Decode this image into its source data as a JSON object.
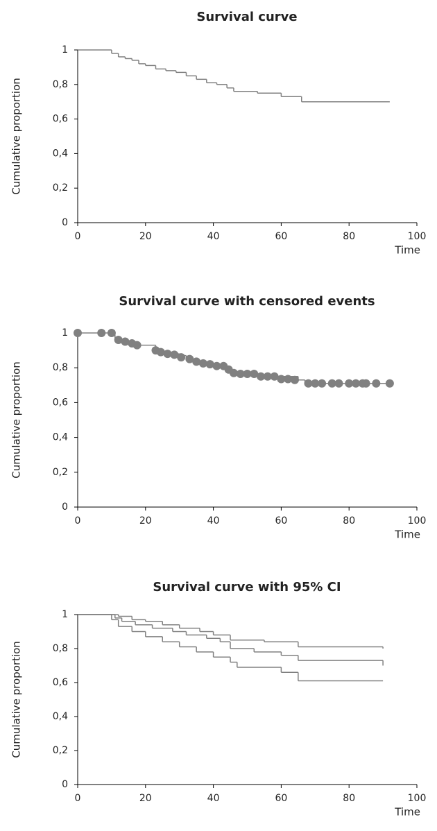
{
  "chart_data": [
    {
      "type": "line",
      "title": "Survival curve",
      "y_label": "Cumulative proportion",
      "x_label": "Time",
      "grid": false,
      "xlim": [
        0,
        100
      ],
      "xticks": [
        0,
        20,
        40,
        60,
        80,
        100
      ],
      "ylim": [
        0,
        1
      ],
      "yticks": [
        0,
        {
          "value": 0.2,
          "label": "0,2"
        },
        {
          "value": 0.4,
          "label": "0,4"
        },
        {
          "value": 0.6,
          "label": "0,6"
        },
        {
          "value": 0.8,
          "label": "0,8"
        },
        1
      ],
      "series": [
        {
          "style": "step",
          "color": "#808080",
          "x": [
            0,
            10,
            12,
            14,
            16,
            18,
            20,
            23,
            26,
            29,
            32,
            35,
            38,
            41,
            44,
            46,
            53,
            60,
            66,
            92
          ],
          "values": [
            1,
            0.98,
            0.96,
            0.95,
            0.94,
            0.92,
            0.91,
            0.89,
            0.88,
            0.87,
            0.85,
            0.83,
            0.81,
            0.8,
            0.78,
            0.76,
            0.75,
            0.73,
            0.7,
            0.7
          ]
        }
      ]
    },
    {
      "type": "line",
      "title": "Survival curve with censored events",
      "y_label": "Cumulative proportion",
      "x_label": "Time",
      "grid": false,
      "xlim": [
        0,
        100
      ],
      "xticks": [
        0,
        20,
        40,
        60,
        80,
        100
      ],
      "ylim": [
        0,
        1
      ],
      "yticks": [
        0,
        {
          "value": 0.2,
          "label": "0,2"
        },
        {
          "value": 0.4,
          "label": "0,4"
        },
        {
          "value": 0.6,
          "label": "0,6"
        },
        {
          "value": 0.8,
          "label": "0,8"
        },
        1
      ],
      "series": [
        {
          "style": "step",
          "color": "#808080",
          "x": [
            0,
            11,
            14,
            16,
            18,
            23,
            25,
            28,
            30,
            32,
            34,
            36,
            38,
            40,
            44,
            45,
            46,
            53,
            58,
            65,
            67,
            92
          ],
          "values": [
            1,
            0.96,
            0.95,
            0.94,
            0.93,
            0.9,
            0.89,
            0.88,
            0.87,
            0.85,
            0.84,
            0.83,
            0.82,
            0.81,
            0.79,
            0.78,
            0.77,
            0.76,
            0.75,
            0.73,
            0.71,
            0.71
          ]
        },
        {
          "style": "markers",
          "color": "#808080",
          "x": [
            0,
            7,
            10,
            12,
            14,
            16,
            17.5,
            23,
            24.5,
            26.5,
            28.5,
            30.5,
            33,
            35,
            37,
            39,
            41,
            43,
            44.5,
            46,
            48,
            50,
            52,
            54,
            56,
            58,
            60,
            62,
            64,
            68,
            70,
            72,
            75,
            77,
            80,
            82,
            84,
            85,
            88,
            92
          ],
          "values": [
            1,
            1,
            1,
            0.96,
            0.95,
            0.94,
            0.93,
            0.9,
            0.89,
            0.88,
            0.875,
            0.86,
            0.85,
            0.835,
            0.825,
            0.82,
            0.81,
            0.81,
            0.79,
            0.77,
            0.765,
            0.765,
            0.765,
            0.75,
            0.75,
            0.75,
            0.735,
            0.735,
            0.73,
            0.71,
            0.71,
            0.71,
            0.71,
            0.71,
            0.71,
            0.71,
            0.71,
            0.71,
            0.71,
            0.71
          ]
        }
      ]
    },
    {
      "type": "line",
      "title": "Survival curve with 95% CI",
      "y_label": "Cumulative proportion",
      "x_label": "Time",
      "grid": false,
      "xlim": [
        0,
        100
      ],
      "xticks": [
        0,
        20,
        40,
        60,
        80,
        100
      ],
      "ylim": [
        0,
        1
      ],
      "yticks": [
        0,
        {
          "value": 0.2,
          "label": "0,2"
        },
        {
          "value": 0.4,
          "label": "0,4"
        },
        {
          "value": 0.6,
          "label": "0,6"
        },
        {
          "value": 0.8,
          "label": "0,8"
        },
        1
      ],
      "series": [
        {
          "style": "step",
          "color": "#808080",
          "x": [
            0,
            12,
            16,
            20,
            25,
            30,
            36,
            40,
            45,
            55,
            65,
            90
          ],
          "values": [
            1,
            0.99,
            0.97,
            0.96,
            0.94,
            0.92,
            0.9,
            0.88,
            0.85,
            0.84,
            0.81,
            0.8
          ]
        },
        {
          "style": "step",
          "color": "#808080",
          "x": [
            0,
            11,
            13,
            17,
            22,
            28,
            32,
            38,
            42,
            45,
            52,
            60,
            65,
            90
          ],
          "values": [
            1,
            0.98,
            0.96,
            0.94,
            0.92,
            0.9,
            0.88,
            0.86,
            0.84,
            0.8,
            0.78,
            0.76,
            0.73,
            0.7
          ]
        },
        {
          "style": "step",
          "color": "#808080",
          "x": [
            0,
            10,
            12,
            16,
            20,
            25,
            30,
            35,
            40,
            45,
            47,
            60,
            65,
            90
          ],
          "values": [
            1,
            0.97,
            0.93,
            0.9,
            0.87,
            0.84,
            0.81,
            0.78,
            0.75,
            0.72,
            0.69,
            0.66,
            0.61,
            0.61
          ]
        }
      ]
    }
  ]
}
